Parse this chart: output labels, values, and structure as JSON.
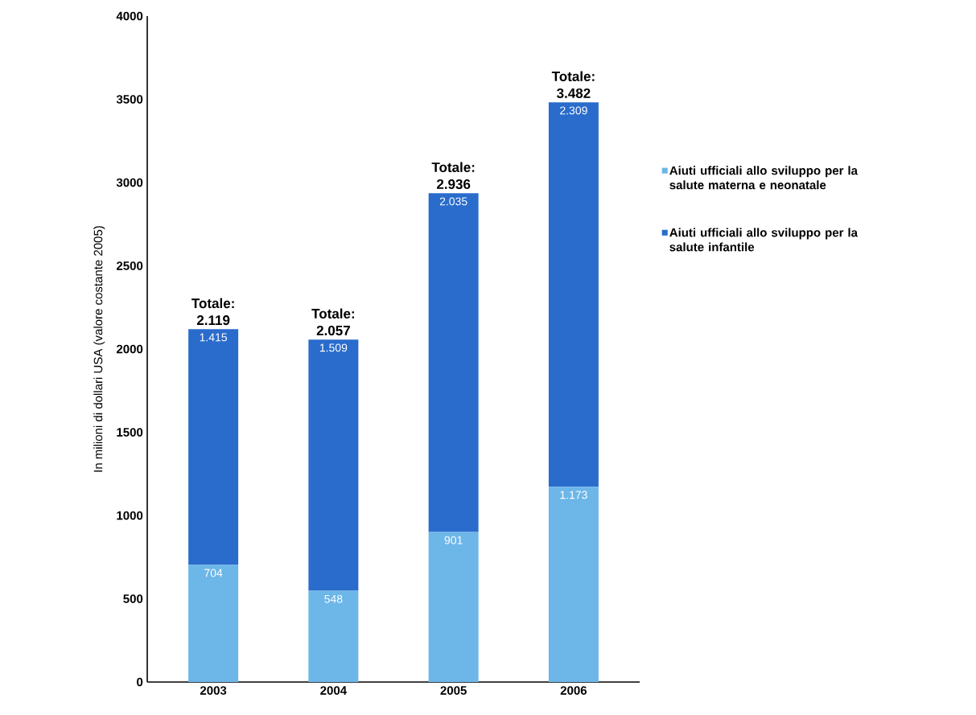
{
  "chart_data": {
    "type": "bar",
    "stacked": true,
    "ylabel": "In milioni di dollari USA (valore costante 2005)",
    "categories": [
      "2003",
      "2004",
      "2005",
      "2006"
    ],
    "series": [
      {
        "name": "Aiuti ufficiali allo sviluppo per la salute materna e neonatale",
        "color": "#6cb6e8",
        "values": [
          704,
          548,
          901,
          1173
        ],
        "value_labels": [
          "704",
          "548",
          "901",
          "1.173"
        ]
      },
      {
        "name": "Aiuti ufficiali allo sviluppo per la salute infantile",
        "color": "#2a6ccc",
        "values": [
          1415,
          1509,
          2035,
          2309
        ],
        "value_labels": [
          "1.415",
          "1.509",
          "2.035",
          "2.309"
        ]
      }
    ],
    "totals": [
      "Totale: 2.119",
      "Totale: 2.057",
      "Totale: 2.936",
      "Totale: 3.482"
    ],
    "ylim": [
      0,
      4000
    ],
    "yticks": [
      0,
      500,
      1000,
      1500,
      2000,
      2500,
      3000,
      3500,
      4000
    ],
    "legend": "right",
    "grid": false
  }
}
